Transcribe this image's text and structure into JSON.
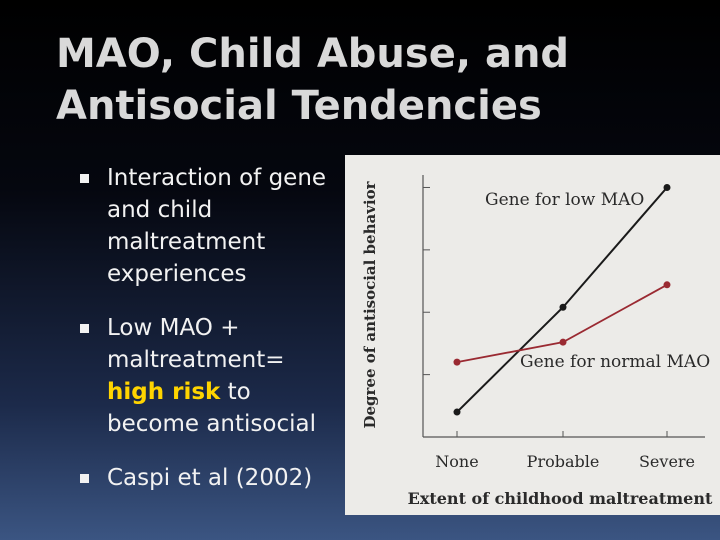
{
  "title": {
    "line1": "MAO, Child Abuse, and",
    "line2": "Antisocial Tendencies"
  },
  "bullets": [
    {
      "text": "Interaction of gene and child maltreatment experiences"
    },
    {
      "pre": "Low MAO + maltreatment= ",
      "highlight": "high risk",
      "post": " to become antisocial"
    },
    {
      "text": "Caspi et al (2002)"
    }
  ],
  "colors": {
    "low_mao": "#1a1a1a",
    "normal_mao": "#9a2a32",
    "highlight": "#ffd400"
  },
  "chart_data": {
    "type": "line",
    "categories": [
      "None",
      "Probable",
      "Severe"
    ],
    "series": [
      {
        "name": "Gene for low MAO",
        "values": [
          0.1,
          0.52,
          1.0
        ]
      },
      {
        "name": "Gene for normal MAO",
        "values": [
          0.3,
          0.38,
          0.61
        ]
      }
    ],
    "xlabel": "Extent of childhood maltreatment",
    "ylabel": "Degree of antisocial behavior",
    "ylim": [
      0,
      1.05
    ],
    "grid": false,
    "legend": "inline labels near lines"
  }
}
